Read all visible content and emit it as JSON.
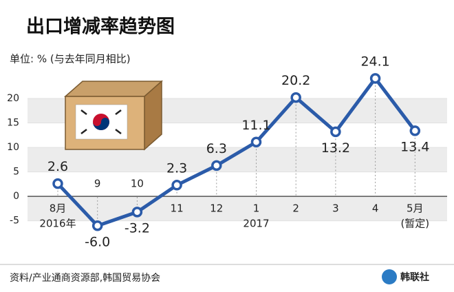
{
  "chart_data": {
    "type": "line",
    "title": "出口增减率趋势图",
    "subtitle": "单位: % (与去年同月相比)",
    "categories": [
      "8月",
      "9",
      "10",
      "11",
      "12",
      "1",
      "2",
      "3",
      "4",
      "5月"
    ],
    "category_sublabels": [
      "2016年",
      null,
      null,
      null,
      null,
      "2017",
      null,
      null,
      null,
      "(暂定)"
    ],
    "series": [
      {
        "name": "出口增减率",
        "color": "#2b5ba9",
        "values": [
          2.6,
          -6.0,
          -3.2,
          2.3,
          6.3,
          11.1,
          20.2,
          13.2,
          24.1,
          13.4
        ],
        "value_labels": [
          "2.6",
          "-6.0",
          "-3.2",
          "2.3",
          "6.3",
          "11.1",
          "20.2",
          "13.2",
          "24.1",
          "13.4"
        ]
      }
    ],
    "ylim": [
      -8,
      25
    ],
    "yticks": [
      -5,
      0,
      5,
      10,
      15,
      20
    ],
    "source": "资料/产业通商资源部,韩国贸易协会",
    "logo": "韩联社"
  }
}
